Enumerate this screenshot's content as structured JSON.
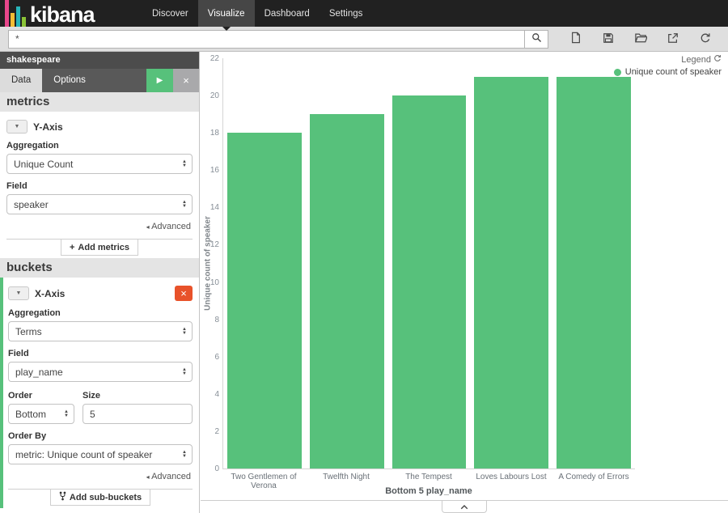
{
  "topnav": {
    "brand": "kibana",
    "items": [
      {
        "label": "Discover",
        "active": false
      },
      {
        "label": "Visualize",
        "active": true
      },
      {
        "label": "Dashboard",
        "active": false
      },
      {
        "label": "Settings",
        "active": false
      }
    ]
  },
  "querybar": {
    "value": "*"
  },
  "toolbar": {
    "icons": [
      "new-visualization",
      "save-visualization",
      "load-visualization",
      "share-visualization",
      "refresh"
    ]
  },
  "sidebar": {
    "index_name": "shakespeare",
    "tabs": [
      {
        "label": "Data",
        "active": true
      },
      {
        "label": "Options",
        "active": false
      }
    ],
    "metrics": {
      "section_label": "metrics",
      "agg_title": "Y-Axis",
      "aggregation_label": "Aggregation",
      "aggregation_value": "Unique Count",
      "field_label": "Field",
      "field_value": "speaker",
      "advanced_label": "Advanced",
      "add_label": "Add metrics"
    },
    "buckets": {
      "section_label": "buckets",
      "agg_title": "X-Axis",
      "aggregation_label": "Aggregation",
      "aggregation_value": "Terms",
      "field_label": "Field",
      "field_value": "play_name",
      "order_label": "Order",
      "order_value": "Bottom",
      "size_label": "Size",
      "size_value": "5",
      "order_by_label": "Order By",
      "order_by_value": "metric: Unique count of speaker",
      "advanced_label": "Advanced",
      "add_label": "Add sub-buckets"
    }
  },
  "legend": {
    "title": "Legend",
    "items": [
      {
        "label": "Unique count of speaker",
        "color": "#57c17b"
      }
    ]
  },
  "chart_data": {
    "type": "bar",
    "title": "",
    "categories": [
      "Two Gentlemen of Verona",
      "Twelfth Night",
      "The Tempest",
      "Loves Labours Lost",
      "A Comedy of Errors"
    ],
    "values": [
      18,
      19,
      20,
      21,
      21
    ],
    "series_name": "Unique count of speaker",
    "xlabel": "Bottom 5 play_name",
    "ylabel": "Unique count of speaker",
    "ylim": [
      0,
      22
    ],
    "ytick_step": 2,
    "bar_color": "#57c17b",
    "grid": false,
    "legend_position": "top-right"
  },
  "icons": {
    "caret_up": "▲",
    "caret_down": "▼",
    "play": "▶",
    "close": "×",
    "advanced": "◂",
    "plus": "+"
  },
  "colors": {
    "accent_green": "#57c17b",
    "remove_red": "#e8522a",
    "topnav_bg": "#212121"
  }
}
